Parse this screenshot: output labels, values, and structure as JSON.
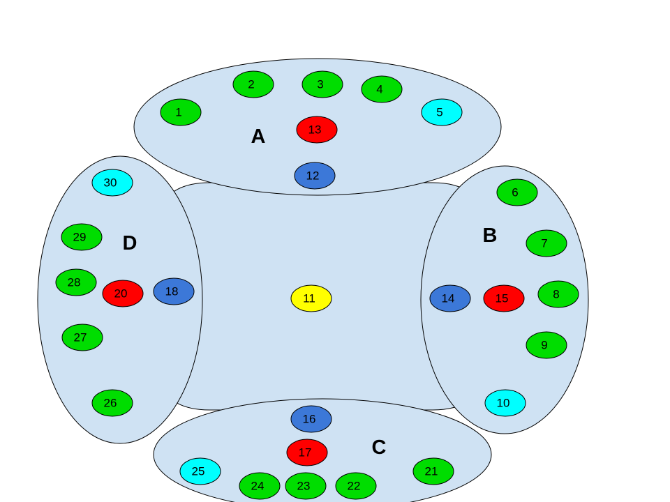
{
  "colors": {
    "region_fill": "#cfe2f3",
    "green": "#00dd00",
    "cyan": "#00ffff",
    "blue": "#3c78d8",
    "red": "#ff0000",
    "yellow": "#ffff00"
  },
  "groups": {
    "A": "A",
    "B": "B",
    "C": "C",
    "D": "D"
  },
  "nodes": [
    {
      "id": "1",
      "label": "1",
      "color": "green",
      "group": "A"
    },
    {
      "id": "2",
      "label": "2",
      "color": "green",
      "group": "A"
    },
    {
      "id": "3",
      "label": "3",
      "color": "green",
      "group": "A"
    },
    {
      "id": "4",
      "label": "4",
      "color": "green",
      "group": "A"
    },
    {
      "id": "5",
      "label": "5",
      "color": "cyan",
      "group": "A"
    },
    {
      "id": "6",
      "label": "6",
      "color": "green",
      "group": "B"
    },
    {
      "id": "7",
      "label": "7",
      "color": "green",
      "group": "B"
    },
    {
      "id": "8",
      "label": "8",
      "color": "green",
      "group": "B"
    },
    {
      "id": "9",
      "label": "9",
      "color": "green",
      "group": "B"
    },
    {
      "id": "10",
      "label": "10",
      "color": "cyan",
      "group": "B"
    },
    {
      "id": "11",
      "label": "11",
      "color": "yellow",
      "group": "center"
    },
    {
      "id": "12",
      "label": "12",
      "color": "blue",
      "group": "A"
    },
    {
      "id": "13",
      "label": "13",
      "color": "red",
      "group": "A"
    },
    {
      "id": "14",
      "label": "14",
      "color": "blue",
      "group": "B"
    },
    {
      "id": "15",
      "label": "15",
      "color": "red",
      "group": "B"
    },
    {
      "id": "16",
      "label": "16",
      "color": "blue",
      "group": "C"
    },
    {
      "id": "17",
      "label": "17",
      "color": "red",
      "group": "C"
    },
    {
      "id": "18",
      "label": "18",
      "color": "blue",
      "group": "D"
    },
    {
      "id": "20",
      "label": "20",
      "color": "red",
      "group": "D"
    },
    {
      "id": "21",
      "label": "21",
      "color": "green",
      "group": "C"
    },
    {
      "id": "22",
      "label": "22",
      "color": "green",
      "group": "C"
    },
    {
      "id": "23",
      "label": "23",
      "color": "green",
      "group": "C"
    },
    {
      "id": "24",
      "label": "24",
      "color": "green",
      "group": "C"
    },
    {
      "id": "25",
      "label": "25",
      "color": "cyan",
      "group": "C"
    },
    {
      "id": "26",
      "label": "26",
      "color": "green",
      "group": "D"
    },
    {
      "id": "27",
      "label": "27",
      "color": "green",
      "group": "D"
    },
    {
      "id": "28",
      "label": "28",
      "color": "green",
      "group": "D"
    },
    {
      "id": "29",
      "label": "29",
      "color": "green",
      "group": "D"
    },
    {
      "id": "30",
      "label": "30",
      "color": "cyan",
      "group": "D"
    }
  ]
}
